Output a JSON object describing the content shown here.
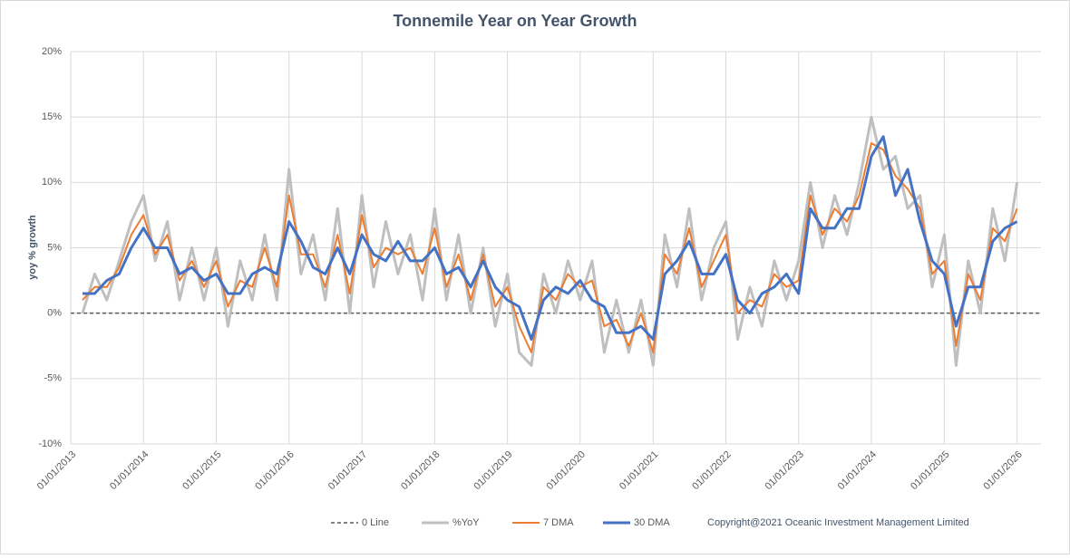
{
  "chart_data": {
    "type": "line",
    "title": "Tonnemile Year on Year Growth",
    "y_label": "yoy % growth",
    "x": [
      "01/03/2013",
      "01/05/2013",
      "01/07/2013",
      "01/09/2013",
      "01/11/2013",
      "01/01/2014",
      "01/03/2014",
      "01/05/2014",
      "01/07/2014",
      "01/09/2014",
      "01/11/2014",
      "01/01/2015",
      "01/03/2015",
      "01/05/2015",
      "01/07/2015",
      "01/09/2015",
      "01/11/2015",
      "01/01/2016",
      "01/03/2016",
      "01/05/2016",
      "01/07/2016",
      "01/09/2016",
      "01/11/2016",
      "01/01/2017",
      "01/03/2017",
      "01/05/2017",
      "01/07/2017",
      "01/09/2017",
      "01/11/2017",
      "01/01/2018",
      "01/03/2018",
      "01/05/2018",
      "01/07/2018",
      "01/09/2018",
      "01/11/2018",
      "01/01/2019",
      "01/03/2019",
      "01/05/2019",
      "01/07/2019",
      "01/09/2019",
      "01/11/2019",
      "01/01/2020",
      "01/03/2020",
      "01/05/2020",
      "01/07/2020",
      "01/09/2020",
      "01/11/2020",
      "01/01/2021",
      "01/03/2021",
      "01/05/2021",
      "01/07/2021",
      "01/09/2021",
      "01/11/2021",
      "01/01/2022",
      "01/03/2022",
      "01/05/2022",
      "01/07/2022",
      "01/09/2022",
      "01/11/2022",
      "01/01/2023",
      "01/03/2023",
      "01/05/2023",
      "01/07/2023",
      "01/09/2023",
      "01/11/2023",
      "01/01/2024",
      "01/03/2024",
      "01/05/2024",
      "01/07/2024",
      "01/09/2024",
      "01/11/2024",
      "01/01/2025",
      "01/03/2025",
      "01/05/2025",
      "01/07/2025",
      "01/09/2025",
      "01/11/2025",
      "01/01/2026"
    ],
    "xlim": [
      "01/01/2013",
      "01/05/2026"
    ],
    "xticks": [
      "01/01/2013",
      "01/01/2014",
      "01/01/2015",
      "01/01/2016",
      "01/01/2017",
      "01/01/2018",
      "01/01/2019",
      "01/01/2020",
      "01/01/2021",
      "01/01/2022",
      "01/01/2023",
      "01/01/2024",
      "01/01/2025",
      "01/01/2026"
    ],
    "ylim": [
      -10,
      20
    ],
    "yticks": [
      {
        "value": -10,
        "label": "-10%"
      },
      {
        "value": -5,
        "label": "-5%"
      },
      {
        "value": 0,
        "label": "0%"
      },
      {
        "value": 5,
        "label": "5%"
      },
      {
        "value": 10,
        "label": "10%"
      },
      {
        "value": 15,
        "label": "15%"
      },
      {
        "value": 20,
        "label": "20%"
      }
    ],
    "grid": true,
    "reference_line": {
      "name": "0 Line",
      "value": 0,
      "color": "#595959"
    },
    "series": [
      {
        "name": "%YoY",
        "color": "#bfbfbf",
        "width": 3,
        "values": [
          0,
          3,
          1,
          4,
          7,
          9,
          4,
          7,
          1,
          5,
          1,
          5,
          -1,
          4,
          1,
          6,
          1,
          11,
          3,
          6,
          1,
          8,
          0,
          9,
          2,
          7,
          3,
          6,
          1,
          8,
          1,
          6,
          0,
          5,
          -1,
          3,
          -3,
          -4,
          3,
          0,
          4,
          1,
          4,
          -3,
          1,
          -3,
          1,
          -4,
          6,
          2,
          8,
          1,
          5,
          7,
          -2,
          2,
          -1,
          4,
          1,
          4,
          10,
          5,
          9,
          6,
          10,
          15,
          11,
          12,
          8,
          9,
          2,
          6,
          -4,
          4,
          0,
          8,
          4,
          10
        ]
      },
      {
        "name": "7 DMA",
        "color": "#ed7d31",
        "width": 2,
        "values": [
          1,
          2,
          2,
          3.5,
          6,
          7.5,
          4.5,
          6,
          2.5,
          4,
          2,
          4,
          0.5,
          2.5,
          2,
          5,
          2,
          9,
          4.5,
          4.5,
          2,
          6,
          1.5,
          7.5,
          3.5,
          5,
          4.5,
          5,
          3,
          6.5,
          2,
          4.5,
          1,
          4.5,
          0.5,
          2,
          -1,
          -3,
          2,
          1,
          3,
          2,
          2.5,
          -1,
          -0.5,
          -2.5,
          0,
          -3,
          4.5,
          3,
          6.5,
          2,
          4,
          6,
          0,
          1,
          0.5,
          3,
          2,
          2.5,
          9,
          6,
          8,
          7,
          9,
          13,
          12.5,
          10.5,
          9.5,
          8,
          3,
          4,
          -2.5,
          3,
          1,
          6.5,
          5.5,
          8
        ]
      },
      {
        "name": "30 DMA",
        "color": "#4472c4",
        "width": 3,
        "values": [
          1.5,
          1.5,
          2.5,
          3,
          5,
          6.5,
          5,
          5,
          3,
          3.5,
          2.5,
          3,
          1.5,
          1.5,
          3,
          3.5,
          3,
          7,
          5.5,
          3.5,
          3,
          5,
          3,
          6,
          4.5,
          4,
          5.5,
          4,
          4,
          5,
          3,
          3.5,
          2,
          4,
          2,
          1,
          0.5,
          -2,
          1,
          2,
          1.5,
          2.5,
          1,
          0.5,
          -1.5,
          -1.5,
          -1,
          -2,
          3,
          4,
          5.5,
          3,
          3,
          4.5,
          1,
          0,
          1.5,
          2,
          3,
          1.5,
          8,
          6.5,
          6.5,
          8,
          8,
          12,
          13.5,
          9,
          11,
          7,
          4,
          3,
          -1,
          2,
          2,
          5.5,
          6.5,
          7
        ]
      }
    ],
    "legend": "bottom",
    "footnote": "Copyright@2021 Oceanic Investment Management Limited"
  }
}
